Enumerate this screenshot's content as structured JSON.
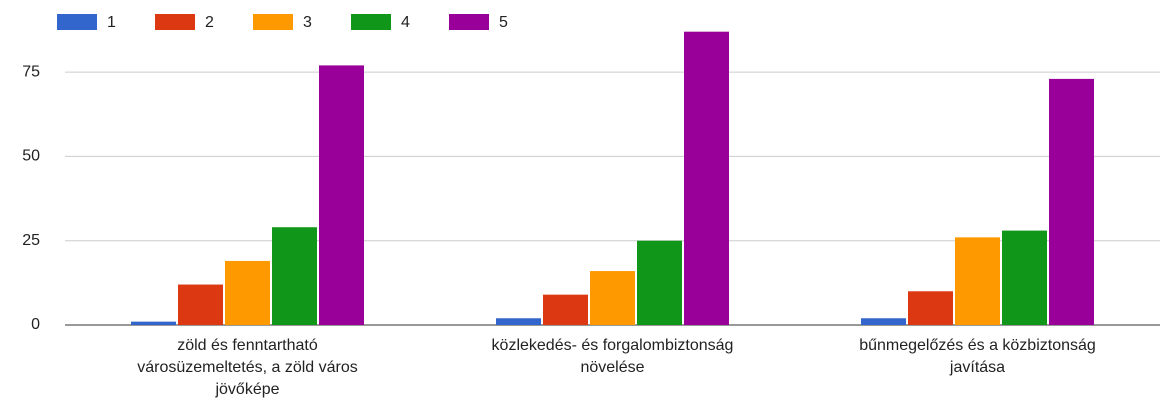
{
  "chart_data": {
    "type": "bar",
    "categories": [
      "zöld és fenntartható városüzemeltetés, a zöld város jövőképe",
      "közlekedés- és forgalombiztonság növelése",
      "bűnmegelőzés és a közbiztonság javítása"
    ],
    "series": [
      {
        "name": "1",
        "color": "#3366cc",
        "values": [
          1,
          2,
          2
        ]
      },
      {
        "name": "2",
        "color": "#dc3912",
        "values": [
          12,
          9,
          10
        ]
      },
      {
        "name": "3",
        "color": "#ff9900",
        "values": [
          19,
          16,
          26
        ]
      },
      {
        "name": "4",
        "color": "#109618",
        "values": [
          29,
          25,
          28
        ]
      },
      {
        "name": "5",
        "color": "#990099",
        "values": [
          77,
          87,
          73
        ]
      }
    ],
    "ylim": [
      0,
      87.5
    ],
    "yticks": [
      0,
      25,
      50,
      75
    ],
    "grid": true,
    "legend": "top"
  }
}
